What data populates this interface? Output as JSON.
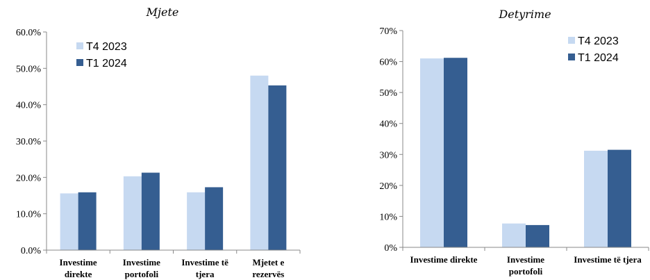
{
  "colors": {
    "t4_2023": "#c6d9f1",
    "t1_2024": "#355e91"
  },
  "chart_data": [
    {
      "type": "bar",
      "title": "Mjete",
      "categories": [
        [
          "Investime",
          "direkte"
        ],
        [
          "Investime",
          "portofoli"
        ],
        [
          "Investime të",
          "tjera"
        ],
        [
          "Mjetet e",
          "rezervës"
        ]
      ],
      "series": [
        {
          "name": "T4 2023",
          "values": [
            15.6,
            20.3,
            15.9,
            48.0
          ]
        },
        {
          "name": "T1 2024",
          "values": [
            15.9,
            21.3,
            17.3,
            45.3
          ]
        }
      ],
      "ylim": [
        0,
        60
      ],
      "yticks": [
        "0.0%",
        "10.0%",
        "20.0%",
        "30.0%",
        "40.0%",
        "50.0%",
        "60.0%"
      ],
      "legend_position": "top-left",
      "grid": false
    },
    {
      "type": "bar",
      "title": "Detyrime",
      "categories": [
        [
          "Investime direkte"
        ],
        [
          "Investime",
          "portofoli"
        ],
        [
          "Investime të tjera"
        ]
      ],
      "series": [
        {
          "name": "T4 2023",
          "values": [
            61.0,
            7.7,
            31.2
          ]
        },
        {
          "name": "T1 2024",
          "values": [
            61.2,
            7.2,
            31.5
          ]
        }
      ],
      "ylim": [
        0,
        70
      ],
      "yticks": [
        "0%",
        "10%",
        "20%",
        "30%",
        "40%",
        "50%",
        "60%",
        "70%"
      ],
      "legend_position": "top-right",
      "grid": false
    }
  ]
}
